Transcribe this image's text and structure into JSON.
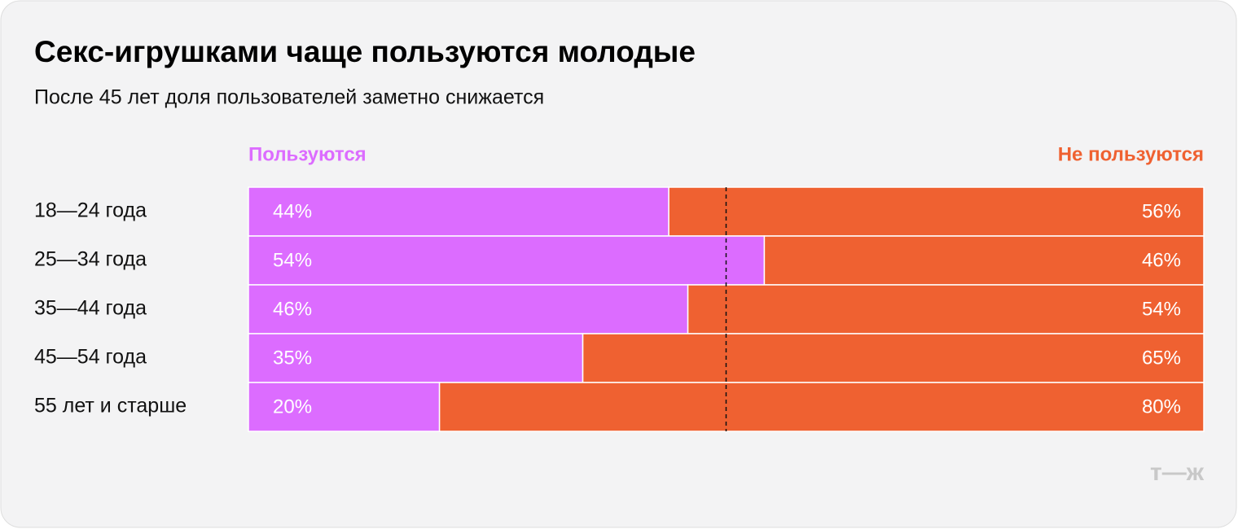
{
  "chart_data": {
    "type": "stacked-bar-100",
    "title": "Секс-игрушками чаще пользуются молодые",
    "subtitle": "После 45 лет доля пользователей заметно снижается",
    "categories": [
      "18—24 года",
      "25—34 года",
      "35—44 года",
      "45—54 года",
      "55 лет и старше"
    ],
    "series": [
      {
        "name": "Пользуются",
        "color": "#dc6cff",
        "values": [
          44,
          54,
          46,
          35,
          20
        ],
        "value_labels": [
          "44%",
          "54%",
          "46%",
          "35%",
          "20%"
        ]
      },
      {
        "name": "Не пользуются",
        "color": "#ef6131",
        "values": [
          56,
          46,
          54,
          65,
          80
        ],
        "value_labels": [
          "56%",
          "46%",
          "54%",
          "65%",
          "80%"
        ]
      }
    ],
    "xlim": [
      0,
      100
    ],
    "reference_line": 50,
    "logo": "т—ж"
  }
}
